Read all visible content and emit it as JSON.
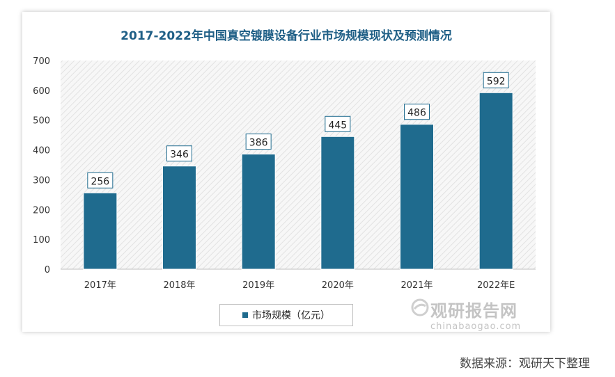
{
  "chart_data": {
    "type": "bar",
    "title": "2017-2022年中国真空镀膜设备行业市场规模现状及预测情况",
    "categories": [
      "2017年",
      "2018年",
      "2019年",
      "2020年",
      "2021年",
      "2022年E"
    ],
    "series": [
      {
        "name": "市场规模（亿元）",
        "values": [
          256,
          346,
          386,
          445,
          486,
          592
        ]
      }
    ],
    "ylim": [
      0,
      700
    ],
    "yticks": [
      0,
      100,
      200,
      300,
      400,
      500,
      600,
      700
    ],
    "grid": false,
    "legend": "bottom-center",
    "colors": {
      "bar": "#1f6b8e",
      "title": "#1f5f86",
      "hatch": "#e6e6e6"
    }
  },
  "legend_label": "市场规模（亿元）",
  "watermark": {
    "main": "观研报告网",
    "sub": "chinabaogao.com"
  },
  "source": "数据来源：观研天下整理"
}
